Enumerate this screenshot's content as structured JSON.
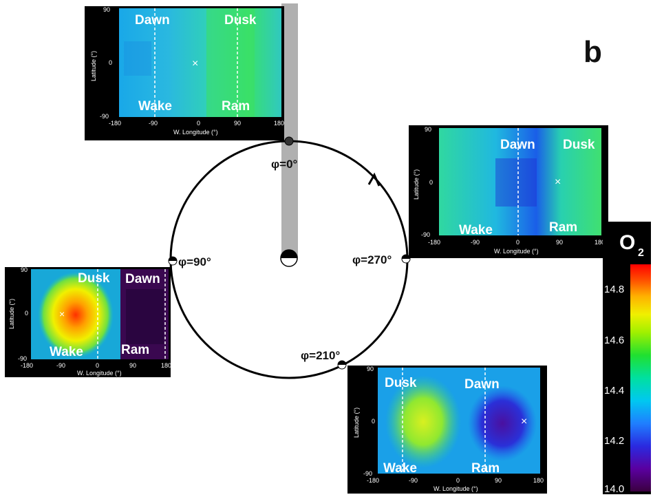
{
  "figure": {
    "panel_letter": "b",
    "orbit_phases": [
      "φ=0°",
      "φ=90°",
      "φ=210°",
      "φ=270°"
    ]
  },
  "maps": [
    {
      "id": "top",
      "labels": {
        "top_left": "Dawn",
        "top_right": "Dusk",
        "bottom_left": "Wake",
        "bottom_right": "Ram"
      },
      "ylabel": "Latitude (°)",
      "xlabel": "W. Longitude (°)",
      "yticks": [
        "90",
        "0",
        "-90"
      ],
      "xticks": [
        "-180",
        "-90",
        "0",
        "90",
        "180"
      ]
    },
    {
      "id": "right",
      "labels": {
        "top_left": "Dawn",
        "top_right": "Dusk",
        "bottom_left": "Wake",
        "bottom_right": "Ram"
      },
      "ylabel": "Latitude (°)",
      "xlabel": "W. Longitude (°)",
      "yticks": [
        "90",
        "0",
        "-90"
      ],
      "xticks": [
        "-180",
        "-90",
        "0",
        "90",
        "180"
      ]
    },
    {
      "id": "left",
      "labels": {
        "top_left": "Dusk",
        "top_right": "Dawn",
        "bottom_left": "Wake",
        "bottom_right": "Ram"
      },
      "ylabel": "Latitude (°)",
      "xlabel": "W. Longitude (°)",
      "yticks": [
        "90",
        "0",
        "-90"
      ],
      "xticks": [
        "-180",
        "-90",
        "0",
        "90",
        "180"
      ]
    },
    {
      "id": "bottom",
      "labels": {
        "top_left": "Dusk",
        "top_right": "Dawn",
        "bottom_left": "Wake",
        "bottom_right": "Ram"
      },
      "ylabel": "Latitude (°)",
      "xlabel": "W. Longitude (°)",
      "yticks": [
        "90",
        "0",
        "-90"
      ],
      "xticks": [
        "-180",
        "-90",
        "0",
        "90",
        "180"
      ]
    }
  ],
  "colorbar": {
    "title": "O",
    "subscript": "2",
    "ticks": [
      "14.8",
      "14.6",
      "14.4",
      "14.2",
      "14.0"
    ],
    "colors": [
      "#3b0040",
      "#5a00a0",
      "#2a2ae0",
      "#1f7fff",
      "#00c8f0",
      "#00e0a0",
      "#20e030",
      "#a0f000",
      "#f0f000",
      "#ffb000",
      "#ff5000",
      "#ff0000"
    ]
  }
}
